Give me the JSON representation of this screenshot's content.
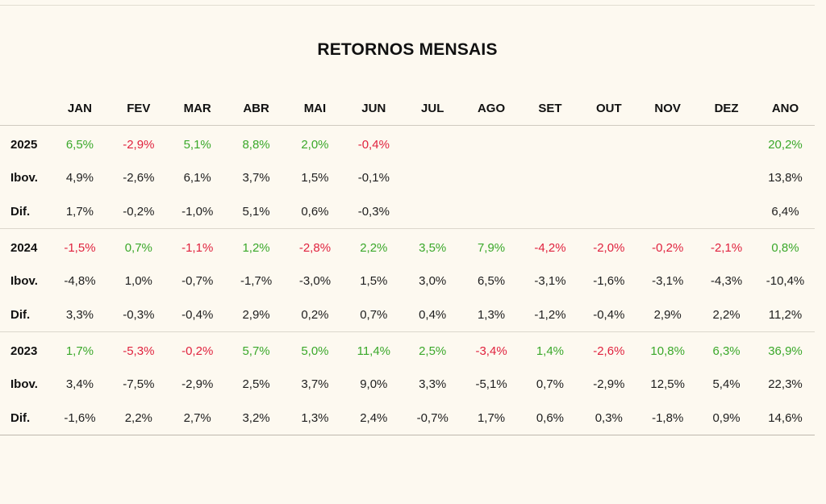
{
  "title": "RETORNOS MENSAIS",
  "colors": {
    "positive": "#3aa82a",
    "negative": "#e0223e",
    "background": "#fdf9f0"
  },
  "headers": [
    "JAN",
    "FEV",
    "MAR",
    "ABR",
    "MAI",
    "JUN",
    "JUL",
    "AGO",
    "SET",
    "OUT",
    "NOV",
    "DEZ",
    "ANO"
  ],
  "groups": [
    {
      "year": "2025",
      "returns": [
        "6,5%",
        "-2,9%",
        "5,1%",
        "8,8%",
        "2,0%",
        "-0,4%",
        "",
        "",
        "",
        "",
        "",
        "",
        "20,2%"
      ],
      "ibov_label": "Ibov.",
      "ibov": [
        "4,9%",
        "-2,6%",
        "6,1%",
        "3,7%",
        "1,5%",
        "-0,1%",
        "",
        "",
        "",
        "",
        "",
        "",
        "13,8%"
      ],
      "dif_label": "Dif.",
      "dif": [
        "1,7%",
        "-0,2%",
        "-1,0%",
        "5,1%",
        "0,6%",
        "-0,3%",
        "",
        "",
        "",
        "",
        "",
        "",
        "6,4%"
      ]
    },
    {
      "year": "2024",
      "returns": [
        "-1,5%",
        "0,7%",
        "-1,1%",
        "1,2%",
        "-2,8%",
        "2,2%",
        "3,5%",
        "7,9%",
        "-4,2%",
        "-2,0%",
        "-0,2%",
        "-2,1%",
        "0,8%"
      ],
      "ibov_label": "Ibov.",
      "ibov": [
        "-4,8%",
        "1,0%",
        "-0,7%",
        "-1,7%",
        "-3,0%",
        "1,5%",
        "3,0%",
        "6,5%",
        "-3,1%",
        "-1,6%",
        "-3,1%",
        "-4,3%",
        "-10,4%"
      ],
      "dif_label": "Dif.",
      "dif": [
        "3,3%",
        "-0,3%",
        "-0,4%",
        "2,9%",
        "0,2%",
        "0,7%",
        "0,4%",
        "1,3%",
        "-1,2%",
        "-0,4%",
        "2,9%",
        "2,2%",
        "11,2%"
      ]
    },
    {
      "year": "2023",
      "returns": [
        "1,7%",
        "-5,3%",
        "-0,2%",
        "5,7%",
        "5,0%",
        "11,4%",
        "2,5%",
        "-3,4%",
        "1,4%",
        "-2,6%",
        "10,8%",
        "6,3%",
        "36,9%"
      ],
      "ibov_label": "Ibov.",
      "ibov": [
        "3,4%",
        "-7,5%",
        "-2,9%",
        "2,5%",
        "3,7%",
        "9,0%",
        "3,3%",
        "-5,1%",
        "0,7%",
        "-2,9%",
        "12,5%",
        "5,4%",
        "22,3%"
      ],
      "dif_label": "Dif.",
      "dif": [
        "-1,6%",
        "2,2%",
        "2,7%",
        "3,2%",
        "1,3%",
        "2,4%",
        "-0,7%",
        "1,7%",
        "0,6%",
        "0,3%",
        "-1,8%",
        "0,9%",
        "14,6%"
      ]
    }
  ]
}
